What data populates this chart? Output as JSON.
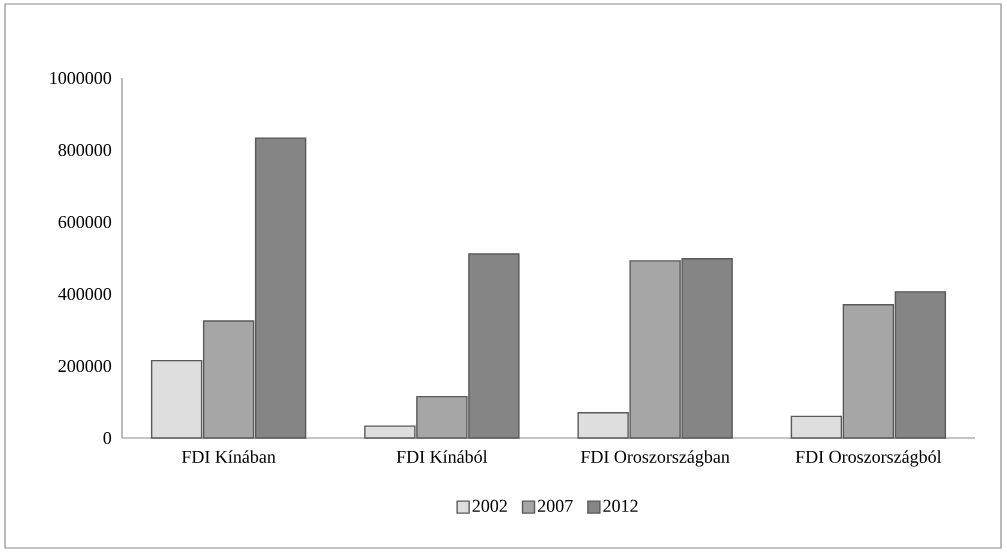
{
  "chart_data": {
    "type": "bar",
    "categories": [
      "FDI Kínában",
      "FDI Kínából",
      "FDI Oroszországban",
      "FDI Oroszországból"
    ],
    "series": [
      {
        "name": "2002",
        "color": "#dedede",
        "values": [
          215000,
          33000,
          70000,
          60000
        ]
      },
      {
        "name": "2007",
        "color": "#a6a6a6",
        "values": [
          325000,
          115000,
          492000,
          370000
        ]
      },
      {
        "name": "2012",
        "color": "#858585",
        "values": [
          833000,
          511000,
          498000,
          406000
        ]
      }
    ],
    "ylim": [
      0,
      1000000
    ],
    "yticks": [
      0,
      200000,
      400000,
      600000,
      800000,
      1000000
    ],
    "grid": false,
    "legend": "bottom"
  }
}
